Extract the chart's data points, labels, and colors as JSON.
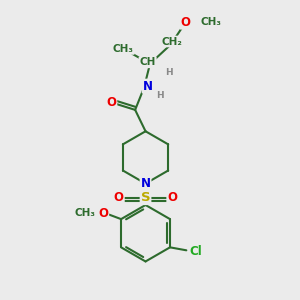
{
  "bg_color": "#ebebeb",
  "bond_color": "#2d6b2d",
  "bond_width": 1.5,
  "atom_colors": {
    "O": "#ee0000",
    "N": "#0000dd",
    "S": "#bbaa00",
    "Cl": "#22aa22",
    "C": "#2d6b2d",
    "H": "#888888"
  },
  "fig_w": 3.0,
  "fig_h": 3.0,
  "dpi": 100,
  "xlim": [
    0,
    10
  ],
  "ylim": [
    0,
    10
  ]
}
